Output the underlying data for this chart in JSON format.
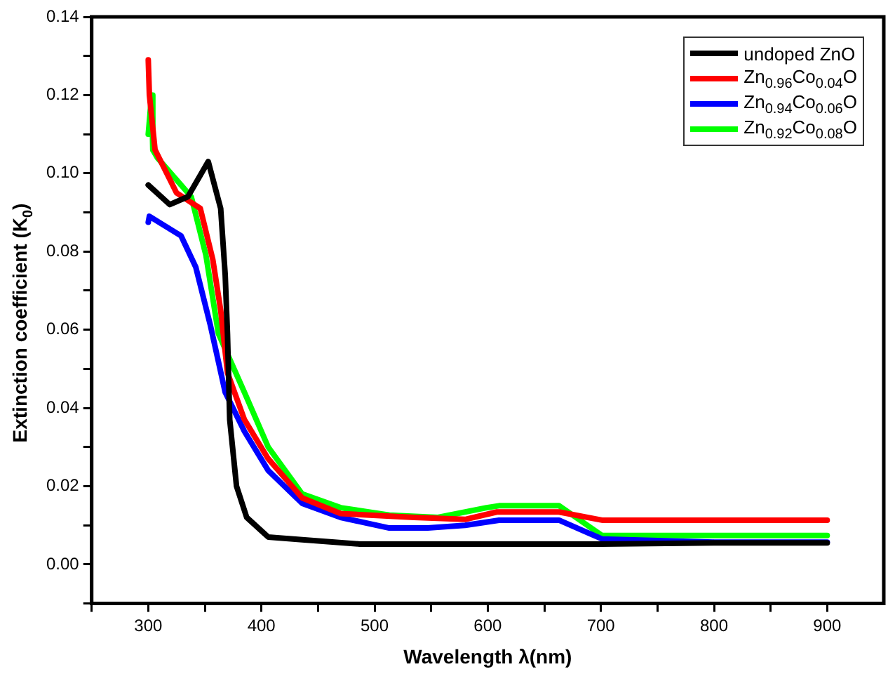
{
  "chart_data": {
    "type": "line",
    "xlabel": "Wavelength λ(nm)",
    "ylabel": "Extinction coefficient (K$_{0}$)",
    "xlim": [
      250,
      950
    ],
    "xticks": [
      {
        "value": 250,
        "label": null
      },
      300,
      {
        "value": 350,
        "label": null
      },
      400,
      {
        "value": 450,
        "label": null
      },
      500,
      {
        "value": 550,
        "label": null
      },
      600,
      {
        "value": 650,
        "label": null
      },
      700,
      {
        "value": 750,
        "label": null
      },
      800,
      {
        "value": 850,
        "label": null
      },
      900
    ],
    "ylim": [
      -0.01,
      0.14
    ],
    "yticks": [
      {
        "value": -0.01,
        "label": null
      },
      {
        "value": 0,
        "label": "0.00"
      },
      {
        "value": 0.01,
        "label": null
      },
      {
        "value": 0.02,
        "label": "0.02"
      },
      {
        "value": 0.03,
        "label": null
      },
      {
        "value": 0.04,
        "label": "0.04"
      },
      {
        "value": 0.05,
        "label": null
      },
      {
        "value": 0.06,
        "label": "0.06"
      },
      {
        "value": 0.07,
        "label": null
      },
      {
        "value": 0.08,
        "label": "0.08"
      },
      {
        "value": 0.09,
        "label": null
      },
      {
        "value": 0.1,
        "label": "0.10"
      },
      {
        "value": 0.11,
        "label": null
      },
      {
        "value": 0.12,
        "label": "0.12"
      },
      {
        "value": 0.13,
        "label": null
      },
      {
        "value": 0.14,
        "label": "0.14"
      }
    ],
    "grid": false,
    "legend": "top right",
    "marker": "none",
    "line_style": "solid",
    "series": [
      {
        "name": "undoped ZnO",
        "color": "#000000",
        "x": [
          300,
          319,
          335,
          353,
          364,
          368,
          370,
          372,
          378,
          387,
          406,
          436,
          487,
          600,
          700,
          800,
          900
        ],
        "values": [
          0.097,
          0.092,
          0.094,
          0.103,
          0.091,
          0.074,
          0.059,
          0.037,
          0.02,
          0.012,
          0.007,
          0.0063,
          0.0052,
          0.0052,
          0.0052,
          0.0055,
          0.0055
        ]
      },
      {
        "name": "Zn$_{0.96}$Co$_{0.04}$O",
        "color": "#ff0000",
        "x": [
          300,
          301,
          306,
          325,
          346,
          357,
          364,
          370,
          385,
          406,
          436,
          470,
          535,
          580,
          608,
          663,
          701,
          800,
          900
        ],
        "values": [
          0.129,
          0.12,
          0.106,
          0.095,
          0.091,
          0.078,
          0.065,
          0.049,
          0.037,
          0.027,
          0.017,
          0.013,
          0.012,
          0.0115,
          0.0134,
          0.0134,
          0.0113,
          0.0113,
          0.0113
        ]
      },
      {
        "name": "Zn$_{0.94}$Co$_{0.06}$O",
        "color": "#0000ff",
        "x": [
          300,
          301,
          329,
          342,
          355,
          368,
          385,
          406,
          436,
          470,
          513,
          547,
          580,
          610,
          663,
          701,
          800,
          900
        ],
        "values": [
          0.0875,
          0.089,
          0.084,
          0.076,
          0.061,
          0.044,
          0.034,
          0.024,
          0.0156,
          0.012,
          0.0093,
          0.0093,
          0.01,
          0.0113,
          0.0113,
          0.0065,
          0.0057,
          0.0057
        ]
      },
      {
        "name": "Zn$_{0.92}$Co$_{0.08}$O",
        "color": "#00ff00",
        "x": [
          300,
          303,
          304,
          308,
          338,
          351,
          362,
          385,
          406,
          436,
          470,
          513,
          556,
          599,
          610,
          663,
          701,
          800,
          900
        ],
        "values": [
          0.11,
          0.12,
          0.106,
          0.104,
          0.094,
          0.079,
          0.059,
          0.044,
          0.03,
          0.018,
          0.0145,
          0.0126,
          0.012,
          0.0145,
          0.015,
          0.015,
          0.0074,
          0.0074,
          0.0074
        ]
      }
    ]
  }
}
